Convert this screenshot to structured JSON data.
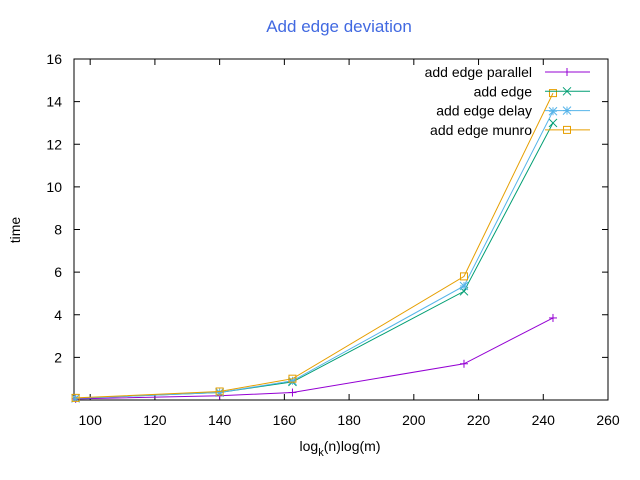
{
  "chart_data": {
    "type": "line",
    "title": "Add edge deviation",
    "title_color": "#4169e1",
    "xlabel_base": "log",
    "xlabel_sub": "k",
    "xlabel_rest": "(n)log(m)",
    "ylabel": "time",
    "xlim": [
      95,
      260
    ],
    "ylim": [
      0,
      16
    ],
    "xticks": [
      100,
      120,
      140,
      160,
      180,
      200,
      220,
      240,
      260
    ],
    "yticks": [
      2,
      4,
      6,
      8,
      10,
      12,
      14,
      16
    ],
    "legend_position": "top-right",
    "grid": false,
    "series": [
      {
        "name": "add edge parallel",
        "color": "#9400d3",
        "marker": "plus",
        "x": [
          95.5,
          140,
          162.5,
          215.5,
          243
        ],
        "y": [
          0.05,
          0.2,
          0.35,
          1.7,
          3.85
        ]
      },
      {
        "name": "add edge",
        "color": "#009e73",
        "marker": "cross",
        "x": [
          95.5,
          140,
          162.5,
          215.5,
          243
        ],
        "y": [
          0.08,
          0.35,
          0.85,
          5.1,
          13.0
        ]
      },
      {
        "name": "add edge delay",
        "color": "#56b4e9",
        "marker": "star",
        "x": [
          95.5,
          140,
          162.5,
          215.5,
          243
        ],
        "y": [
          0.08,
          0.35,
          0.9,
          5.35,
          13.55
        ]
      },
      {
        "name": "add edge munro",
        "color": "#e69f00",
        "marker": "square",
        "x": [
          95.5,
          140,
          162.5,
          215.5,
          243
        ],
        "y": [
          0.1,
          0.4,
          1.0,
          5.8,
          14.4
        ]
      }
    ]
  }
}
